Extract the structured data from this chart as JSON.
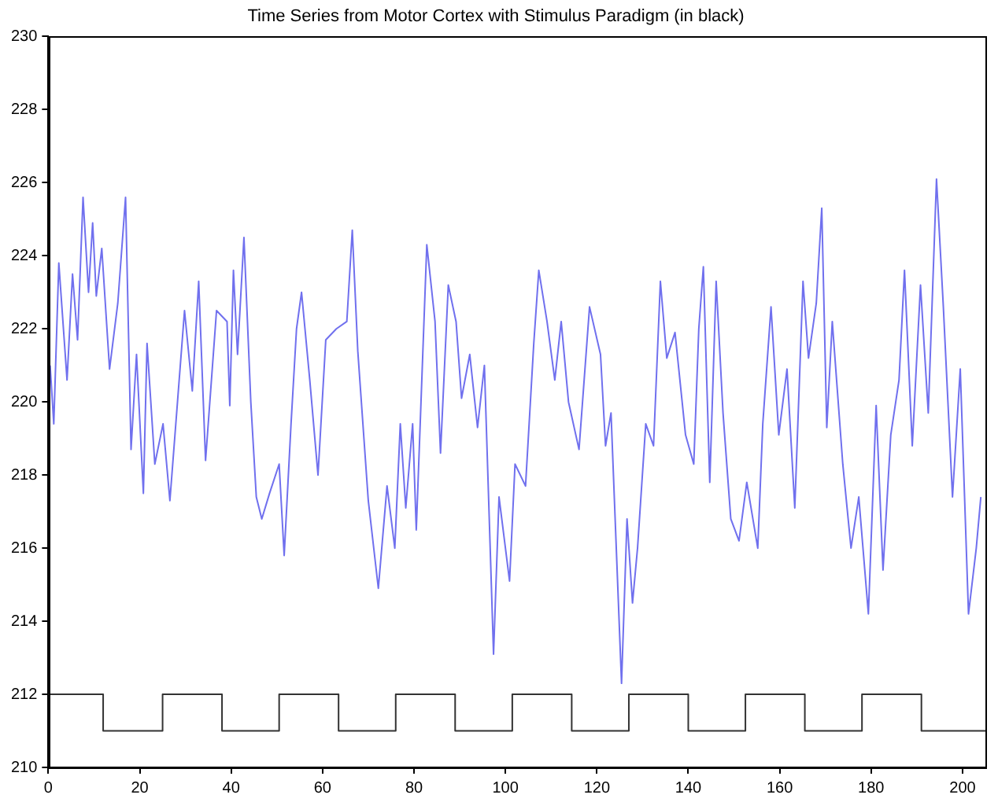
{
  "chart_data": {
    "type": "line",
    "title": "Time Series from Motor Cortex with Stimulus Paradigm (in black)",
    "xlim": [
      0,
      205
    ],
    "xticks": [
      0,
      20,
      40,
      60,
      80,
      100,
      120,
      140,
      160,
      180,
      200
    ],
    "ylim": [
      210,
      230
    ],
    "yticks": [
      210,
      212,
      214,
      216,
      218,
      220,
      222,
      224,
      226,
      228,
      230
    ],
    "grid": false,
    "legend": false,
    "marker": "none",
    "line_style": "solid",
    "series": [
      {
        "type": "line",
        "color": "#7070ee",
        "x": [
          0.4,
          1.2,
          2.3,
          4.1,
          5.3,
          6.4,
          7.6,
          8.8,
          9.7,
          10.5,
          11.7,
          13.4,
          15.2,
          16.9,
          18.1,
          19.3,
          20.8,
          21.6,
          23.3,
          25.1,
          26.6,
          29.8,
          31.5,
          32.9,
          34.4,
          36.8,
          39.1,
          39.7,
          40.5,
          41.4,
          42.8,
          44.3,
          45.5,
          46.7,
          48.4,
          50.5,
          51.6,
          53.1,
          54.3,
          55.4,
          57.2,
          59,
          60.7,
          63,
          65.3,
          66.5,
          67.7,
          70,
          72.2,
          74.1,
          75.8,
          77,
          78.2,
          79.7,
          80.5,
          82.8,
          84.6,
          85.8,
          87.5,
          89.2,
          90.4,
          92.2,
          93.9,
          95.4,
          97.4,
          98.6,
          100.9,
          102.1,
          104.4,
          106.2,
          107.3,
          109.1,
          110.8,
          112.2,
          113.8,
          116.1,
          118.4,
          120.8,
          121.9,
          123.1,
          125.4,
          126.6,
          127.8,
          128.9,
          130.7,
          132.4,
          133.9,
          135.3,
          137.1,
          139.4,
          141.2,
          142.3,
          143.3,
          144.7,
          146.1,
          147.6,
          149.3,
          151.1,
          152.8,
          155.2,
          156.3,
          158.1,
          159.8,
          161.6,
          163.3,
          165.1,
          166.3,
          168,
          169.2,
          170.3,
          171.5,
          173.8,
          175.6,
          177.3,
          179.4,
          181.1,
          182.6,
          184.3,
          186.1,
          187.3,
          189,
          190.8,
          192.5,
          194.3,
          195.8,
          197.8,
          199.5,
          201.3,
          203,
          204
        ],
        "values": [
          221,
          219.4,
          223.8,
          220.6,
          223.5,
          221.7,
          225.6,
          223,
          224.9,
          222.9,
          224.2,
          220.9,
          222.7,
          225.6,
          218.7,
          221.3,
          217.5,
          221.6,
          218.3,
          219.4,
          217.3,
          222.5,
          220.3,
          223.3,
          218.4,
          222.5,
          222.2,
          219.9,
          223.6,
          221.3,
          224.5,
          220,
          217.4,
          216.8,
          217.5,
          218.3,
          215.8,
          219.4,
          222,
          223,
          220.6,
          218,
          221.7,
          222,
          222.2,
          224.7,
          221.4,
          217.3,
          214.9,
          217.7,
          216,
          219.4,
          217.1,
          219.4,
          216.5,
          224.3,
          222.2,
          218.6,
          223.2,
          222.2,
          220.1,
          221.3,
          219.3,
          221,
          213.1,
          217.4,
          215.1,
          218.3,
          217.7,
          221.6,
          223.6,
          222.2,
          220.6,
          222.2,
          220,
          218.7,
          222.6,
          221.3,
          218.8,
          219.7,
          212.3,
          216.8,
          214.5,
          216,
          219.4,
          218.8,
          223.3,
          221.2,
          221.9,
          219.1,
          218.3,
          222,
          223.7,
          217.8,
          223.3,
          219.7,
          216.8,
          216.2,
          217.8,
          216,
          219.4,
          222.6,
          219.1,
          220.9,
          217.1,
          223.3,
          221.2,
          222.7,
          225.3,
          219.3,
          222.2,
          218.3,
          216,
          217.4,
          214.2,
          219.9,
          215.4,
          219.1,
          220.6,
          223.6,
          218.8,
          223.2,
          219.7,
          226.1,
          222.6,
          217.4,
          220.9,
          214.2,
          216,
          217.4
        ]
      },
      {
        "type": "step",
        "color": "#333333",
        "x": [
          0,
          12,
          25,
          38,
          50.5,
          63.5,
          76,
          89,
          101.5,
          114.5,
          127,
          140,
          152.5,
          165.5,
          178,
          191,
          205
        ],
        "values": [
          212,
          211,
          212,
          211,
          212,
          211,
          212,
          211,
          212,
          211,
          212,
          211,
          212,
          211,
          212,
          211,
          211
        ]
      }
    ]
  }
}
